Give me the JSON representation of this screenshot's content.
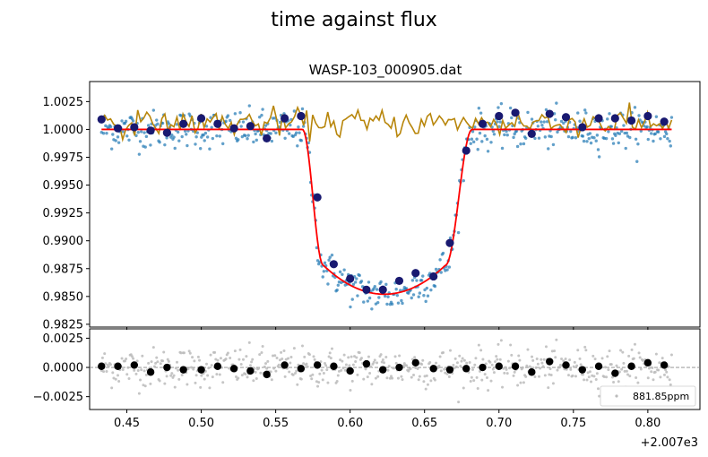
{
  "figure": {
    "suptitle": "time against flux"
  },
  "chart_data": [
    {
      "type": "scatter",
      "title": "WASP-103_000905.dat",
      "xlim": [
        2007.425,
        2007.835
      ],
      "ylim": [
        0.98225,
        1.0043
      ],
      "yticks": [
        0.9825,
        0.985,
        0.9875,
        0.99,
        0.9925,
        0.995,
        0.9975,
        1.0,
        1.0025
      ],
      "ytick_labels": [
        "0.9825",
        "0.9850",
        "0.9875",
        "0.9900",
        "0.9925",
        "0.9950",
        "0.9975",
        "1.0000",
        "1.0025"
      ],
      "transit_model": {
        "baseline": 1.0,
        "depth_min": 0.9852,
        "ingress_start": 2007.568,
        "ingress_end": 2007.582,
        "egress_start": 2007.664,
        "egress_end": 2007.682,
        "x_start": 2007.433,
        "x_end": 2007.816
      },
      "series": [
        {
          "points": [
            [
              2007.433,
              1.0009
            ],
            [
              2007.444,
              1.0001
            ],
            [
              2007.455,
              1.0002
            ],
            [
              2007.466,
              0.9999
            ],
            [
              2007.477,
              0.9997
            ],
            [
              2007.488,
              1.0005
            ],
            [
              2007.5,
              1.001
            ],
            [
              2007.511,
              1.0005
            ],
            [
              2007.522,
              1.0001
            ],
            [
              2007.533,
              1.0003
            ],
            [
              2007.544,
              0.9992
            ],
            [
              2007.556,
              1.001
            ],
            [
              2007.567,
              1.0012
            ],
            [
              2007.578,
              0.9939
            ],
            [
              2007.589,
              0.9879
            ],
            [
              2007.6,
              0.9866
            ],
            [
              2007.611,
              0.9856
            ],
            [
              2007.622,
              0.9856
            ],
            [
              2007.633,
              0.9864
            ],
            [
              2007.644,
              0.9871
            ],
            [
              2007.656,
              0.9868
            ],
            [
              2007.667,
              0.9898
            ],
            [
              2007.678,
              0.9981
            ],
            [
              2007.689,
              1.0005
            ],
            [
              2007.7,
              1.0012
            ],
            [
              2007.711,
              1.0015
            ],
            [
              2007.722,
              0.9996
            ],
            [
              2007.734,
              1.0014
            ],
            [
              2007.745,
              1.0011
            ],
            [
              2007.756,
              1.0002
            ],
            [
              2007.767,
              1.001
            ],
            [
              2007.778,
              1.001
            ],
            [
              2007.789,
              1.0008
            ],
            [
              2007.8,
              1.0012
            ],
            [
              2007.811,
              1.0007
            ]
          ]
        }
      ],
      "colors": {
        "raw": "#1f77b4",
        "binned": "#191970",
        "model": "#ff0000",
        "comparison": "#b8860b"
      }
    },
    {
      "type": "scatter",
      "xlim": [
        2007.425,
        2007.835
      ],
      "ylim": [
        -0.0036,
        0.0033
      ],
      "yticks": [
        -0.0025,
        0.0,
        0.0025
      ],
      "ytick_labels": [
        "−0.0025",
        "0.0000",
        "0.0025"
      ],
      "xticks": [
        2007.45,
        2007.5,
        2007.55,
        2007.6,
        2007.65,
        2007.7,
        2007.75,
        2007.8
      ],
      "xtick_labels": [
        "0.45",
        "0.50",
        "0.55",
        "0.60",
        "0.65",
        "0.70",
        "0.75",
        "0.80"
      ],
      "x_offset_label": "+2.007e3",
      "legend": {
        "label": "881.85ppm",
        "placement": "bottom-right"
      },
      "series": [
        {
          "points": [
            [
              2007.433,
              0.0001
            ],
            [
              2007.444,
              0.0001
            ],
            [
              2007.455,
              0.0002
            ],
            [
              2007.466,
              -0.0004
            ],
            [
              2007.477,
              0.0
            ],
            [
              2007.488,
              -0.0002
            ],
            [
              2007.5,
              -0.0002
            ],
            [
              2007.511,
              0.0001
            ],
            [
              2007.522,
              -0.0001
            ],
            [
              2007.533,
              -0.0003
            ],
            [
              2007.544,
              -0.0006
            ],
            [
              2007.556,
              0.0002
            ],
            [
              2007.567,
              -0.0001
            ],
            [
              2007.578,
              0.0002
            ],
            [
              2007.589,
              0.0001
            ],
            [
              2007.6,
              -0.0003
            ],
            [
              2007.611,
              0.0003
            ],
            [
              2007.622,
              -0.0002
            ],
            [
              2007.633,
              0.0
            ],
            [
              2007.644,
              0.0004
            ],
            [
              2007.656,
              -0.0001
            ],
            [
              2007.667,
              -0.0002
            ],
            [
              2007.678,
              -0.0001
            ],
            [
              2007.689,
              0.0
            ],
            [
              2007.7,
              0.0001
            ],
            [
              2007.711,
              0.0001
            ],
            [
              2007.722,
              -0.0004
            ],
            [
              2007.734,
              0.0005
            ],
            [
              2007.745,
              0.0002
            ],
            [
              2007.756,
              -0.0002
            ],
            [
              2007.767,
              0.0001
            ],
            [
              2007.778,
              -0.0005
            ],
            [
              2007.789,
              0.0001
            ],
            [
              2007.8,
              0.0004
            ],
            [
              2007.811,
              0.0002
            ]
          ]
        }
      ],
      "colors": {
        "raw": "#bbbbbb",
        "binned": "#000000",
        "zero_line": "#888888"
      }
    }
  ]
}
